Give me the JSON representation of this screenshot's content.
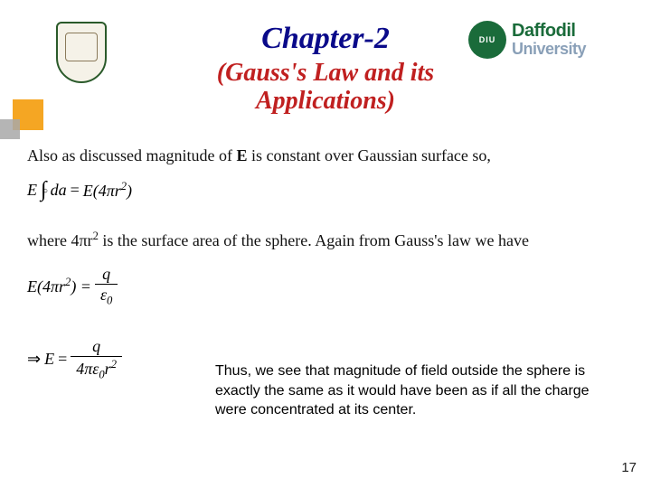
{
  "title": {
    "chapter": "Chapter-2",
    "chapter_color": "#0a0a8a",
    "subtitle_line1": "(Gauss's Law and its",
    "subtitle_line2": "Applications)",
    "subtitle_color": "#c02020"
  },
  "logos": {
    "daffodil_line1": "Daffodil",
    "daffodil_line2": "University",
    "daffodil_badge": "DIU"
  },
  "body": {
    "para1_prefix": "Also as discussed magnitude of ",
    "para1_bold": "E",
    "para1_suffix": " is constant over Gaussian surface so,",
    "eq1_lhs_E": "E",
    "eq1_int": "∫",
    "eq1_da": "da",
    "eq1_eq": " = ",
    "eq1_rhs": "E(4πr",
    "eq1_rhs_sup": "2",
    "eq1_rhs_close": ")",
    "para2_prefix": "where 4πr",
    "para2_sup": "2",
    "para2_suffix": " is the surface area of the sphere. Again from Gauss's law we have",
    "eq2_lhs": "E(4πr",
    "eq2_lhs_sup": "2",
    "eq2_lhs_close": ") = ",
    "eq2_num": "q",
    "eq2_den_eps": "ε",
    "eq2_den_sub": "0",
    "eq3_arrow": "⇒ ",
    "eq3_E": "E",
    "eq3_eq": " = ",
    "eq3_num": "q",
    "eq3_den_4pe": "4πε",
    "eq3_den_sub": "0",
    "eq3_den_r": "r",
    "eq3_den_rsup": "2",
    "conclusion": "Thus, we see that magnitude of field outside the sphere is exactly the same as it would have been as if all the charge were concentrated at its center."
  },
  "page_number": "17",
  "colors": {
    "accent_orange": "#f5a623",
    "accent_gray": "#a8a8a8",
    "daffodil_green": "#1a6b3a",
    "daffodil_gray": "#8aa0b8"
  }
}
